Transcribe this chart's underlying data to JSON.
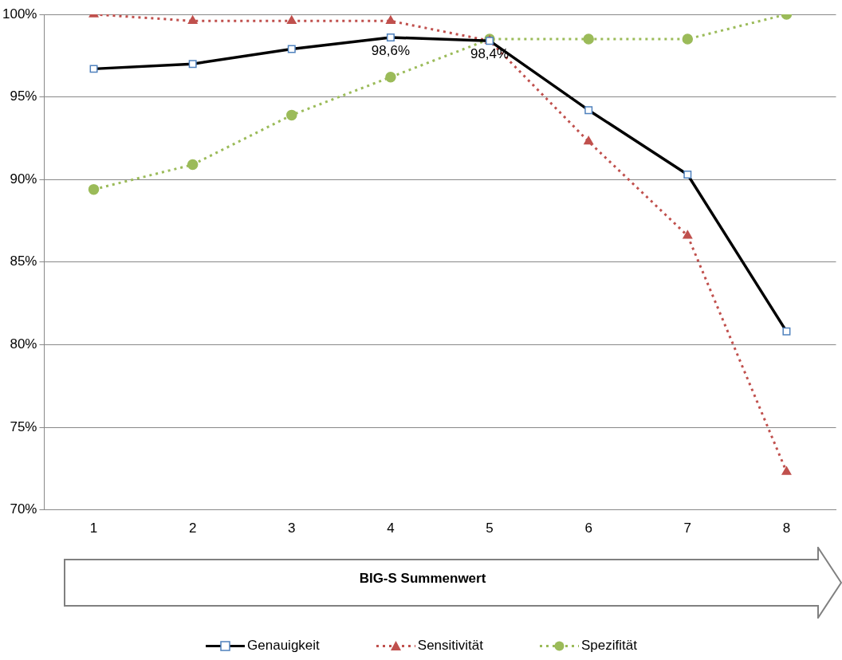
{
  "chart_data": {
    "type": "line",
    "xlabel": "BIG-S Summenwert",
    "categories": [
      "1",
      "2",
      "3",
      "4",
      "5",
      "6",
      "7",
      "8"
    ],
    "series": [
      {
        "name": "Genauigkeit",
        "color": "#000000",
        "marker": "square",
        "line_style": "solid",
        "values": [
          96.7,
          97.0,
          97.9,
          98.6,
          98.4,
          94.2,
          90.3,
          80.8
        ]
      },
      {
        "name": "Sensitivität",
        "color": "#c0504d",
        "marker": "triangle",
        "line_style": "dotted",
        "values": [
          100,
          99.6,
          99.6,
          99.6,
          98.4,
          92.3,
          86.6,
          72.3
        ]
      },
      {
        "name": "Spezifität",
        "color": "#9bbb59",
        "marker": "circle",
        "line_style": "dotted",
        "values": [
          89.4,
          90.9,
          93.9,
          96.2,
          98.5,
          98.5,
          98.5,
          100
        ]
      }
    ],
    "ylim": [
      70,
      100
    ],
    "yticks": [
      {
        "value": 70,
        "label": "70%"
      },
      {
        "value": 75,
        "label": "75%"
      },
      {
        "value": 80,
        "label": "80%"
      },
      {
        "value": 85,
        "label": "85%"
      },
      {
        "value": 90,
        "label": "90%"
      },
      {
        "value": 95,
        "label": "95%"
      },
      {
        "value": 100,
        "label": "100%"
      }
    ],
    "grid": "y",
    "legend": "bottom",
    "annotations": [
      {
        "text": "98,6%",
        "x": "4",
        "y": 98.6
      },
      {
        "text": "98,4%",
        "x": "5",
        "y": 98.4
      }
    ]
  }
}
